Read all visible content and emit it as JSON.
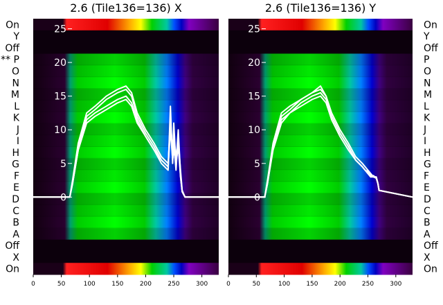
{
  "chart_data": [
    {
      "type": "line",
      "title": "2.6 (Tile136=136) X",
      "x_ticks": [
        "0",
        "50",
        "100",
        "150",
        "200",
        "250",
        "300"
      ],
      "xlim": [
        0,
        330
      ],
      "y_ticks": [
        "0",
        "5",
        "10",
        "15",
        "20",
        "25"
      ],
      "ylim": [
        -11.5,
        26.5
      ],
      "row_labels": [
        "On",
        "Y",
        "Off",
        "** P",
        "O",
        "N",
        "M",
        "L",
        "K",
        "J",
        "I",
        "H",
        "G",
        "F",
        "E",
        "D",
        "C",
        "B",
        "A",
        "Off",
        "X",
        "On"
      ],
      "series": [
        {
          "x": [
            0,
            65,
            70,
            80,
            95,
            110,
            130,
            150,
            165,
            175,
            185,
            200,
            215,
            228,
            240,
            244,
            248,
            250,
            254,
            258,
            262,
            265,
            270,
            330
          ],
          "y": [
            0,
            0,
            2,
            7,
            11,
            12,
            13,
            14,
            14.5,
            13.5,
            11,
            9,
            7,
            5,
            4,
            13.5,
            5,
            8,
            4,
            9,
            3,
            0.8,
            0,
            0
          ]
        },
        {
          "x": [
            0,
            65,
            70,
            80,
            95,
            110,
            130,
            150,
            165,
            175,
            185,
            200,
            215,
            228,
            240,
            244,
            248,
            250,
            254,
            258,
            262,
            265,
            270,
            330
          ],
          "y": [
            0,
            0,
            2,
            7.5,
            12,
            13,
            14.5,
            15.5,
            16,
            15,
            12,
            9.5,
            7.5,
            5.5,
            4.5,
            12,
            6,
            11,
            5,
            10,
            3.5,
            0.9,
            0,
            0
          ]
        },
        {
          "x": [
            0,
            65,
            70,
            80,
            95,
            110,
            130,
            150,
            165,
            175,
            185,
            200,
            215,
            228,
            240,
            244,
            248,
            250,
            254,
            258,
            262,
            265,
            270,
            330
          ],
          "y": [
            0,
            0,
            2.5,
            8,
            12.5,
            13.5,
            15,
            16,
            16.5,
            15.5,
            12.5,
            10,
            8,
            6,
            5,
            11,
            7,
            9,
            6,
            8.5,
            4,
            1,
            0,
            0
          ]
        },
        {
          "x": [
            0,
            65,
            70,
            80,
            95,
            110,
            130,
            150,
            165,
            175,
            185,
            200,
            215,
            228,
            240,
            244,
            248,
            250,
            254,
            258,
            262,
            265,
            270,
            330
          ],
          "y": [
            0,
            0,
            2,
            7,
            11.5,
            12.5,
            13.5,
            14.5,
            15,
            14,
            11.5,
            9,
            7,
            5.5,
            4.5,
            10,
            5.5,
            7,
            5,
            7.5,
            3,
            0.8,
            0,
            0
          ]
        }
      ]
    },
    {
      "type": "line",
      "title": "2.6 (Tile136=136) Y",
      "x_ticks": [
        "0",
        "50",
        "100",
        "150",
        "200",
        "250",
        "300"
      ],
      "xlim": [
        0,
        330
      ],
      "y_ticks": [
        "0",
        "5",
        "10",
        "15",
        "20",
        "25"
      ],
      "ylim": [
        -11.5,
        26.5
      ],
      "row_labels": [
        "On",
        "Y",
        "Off",
        "P",
        "O",
        "N",
        "M",
        "L",
        "K",
        "J",
        "I",
        "H",
        "G",
        "F",
        "E",
        "D",
        "C",
        "B",
        "A",
        "Off",
        "X",
        "On"
      ],
      "series": [
        {
          "x": [
            0,
            65,
            70,
            80,
            95,
            110,
            130,
            150,
            165,
            175,
            185,
            200,
            215,
            228,
            240,
            245,
            250,
            255,
            260,
            265,
            268,
            270,
            330
          ],
          "y": [
            0,
            0,
            2,
            7,
            11,
            12.5,
            13.5,
            14.5,
            15,
            14,
            11.5,
            9,
            7,
            5.5,
            4.5,
            4,
            3.5,
            3,
            3,
            3,
            2,
            1,
            0
          ]
        },
        {
          "x": [
            0,
            65,
            70,
            80,
            95,
            110,
            130,
            150,
            165,
            175,
            185,
            200,
            215,
            228,
            240,
            245,
            250,
            255,
            260,
            265,
            268,
            270,
            330
          ],
          "y": [
            0,
            0,
            2,
            7.5,
            12,
            13,
            14.5,
            15.5,
            16,
            15,
            12,
            9.5,
            7.5,
            5.5,
            4.5,
            4,
            3.5,
            3,
            3.2,
            2.8,
            2,
            1,
            0
          ]
        },
        {
          "x": [
            0,
            65,
            70,
            80,
            95,
            110,
            130,
            150,
            165,
            175,
            185,
            200,
            215,
            228,
            240,
            245,
            250,
            255,
            260,
            265,
            268,
            270,
            330
          ],
          "y": [
            0,
            0,
            2.5,
            8,
            12.5,
            13.5,
            14.5,
            15.5,
            16.5,
            15,
            12.5,
            10,
            8,
            6,
            5,
            4.5,
            4,
            3.5,
            3,
            3,
            2,
            1,
            0
          ]
        },
        {
          "x": [
            0,
            65,
            70,
            80,
            95,
            110,
            130,
            150,
            165,
            175,
            185,
            200,
            215,
            228,
            240,
            245,
            250,
            255,
            260,
            265,
            268,
            270,
            330
          ],
          "y": [
            0,
            0,
            2,
            7.5,
            11.5,
            12.5,
            14,
            15,
            15.5,
            14.5,
            12,
            9.5,
            7.5,
            5.5,
            4.5,
            4,
            3.8,
            3.2,
            3,
            2.8,
            2,
            1,
            0
          ]
        }
      ]
    }
  ]
}
